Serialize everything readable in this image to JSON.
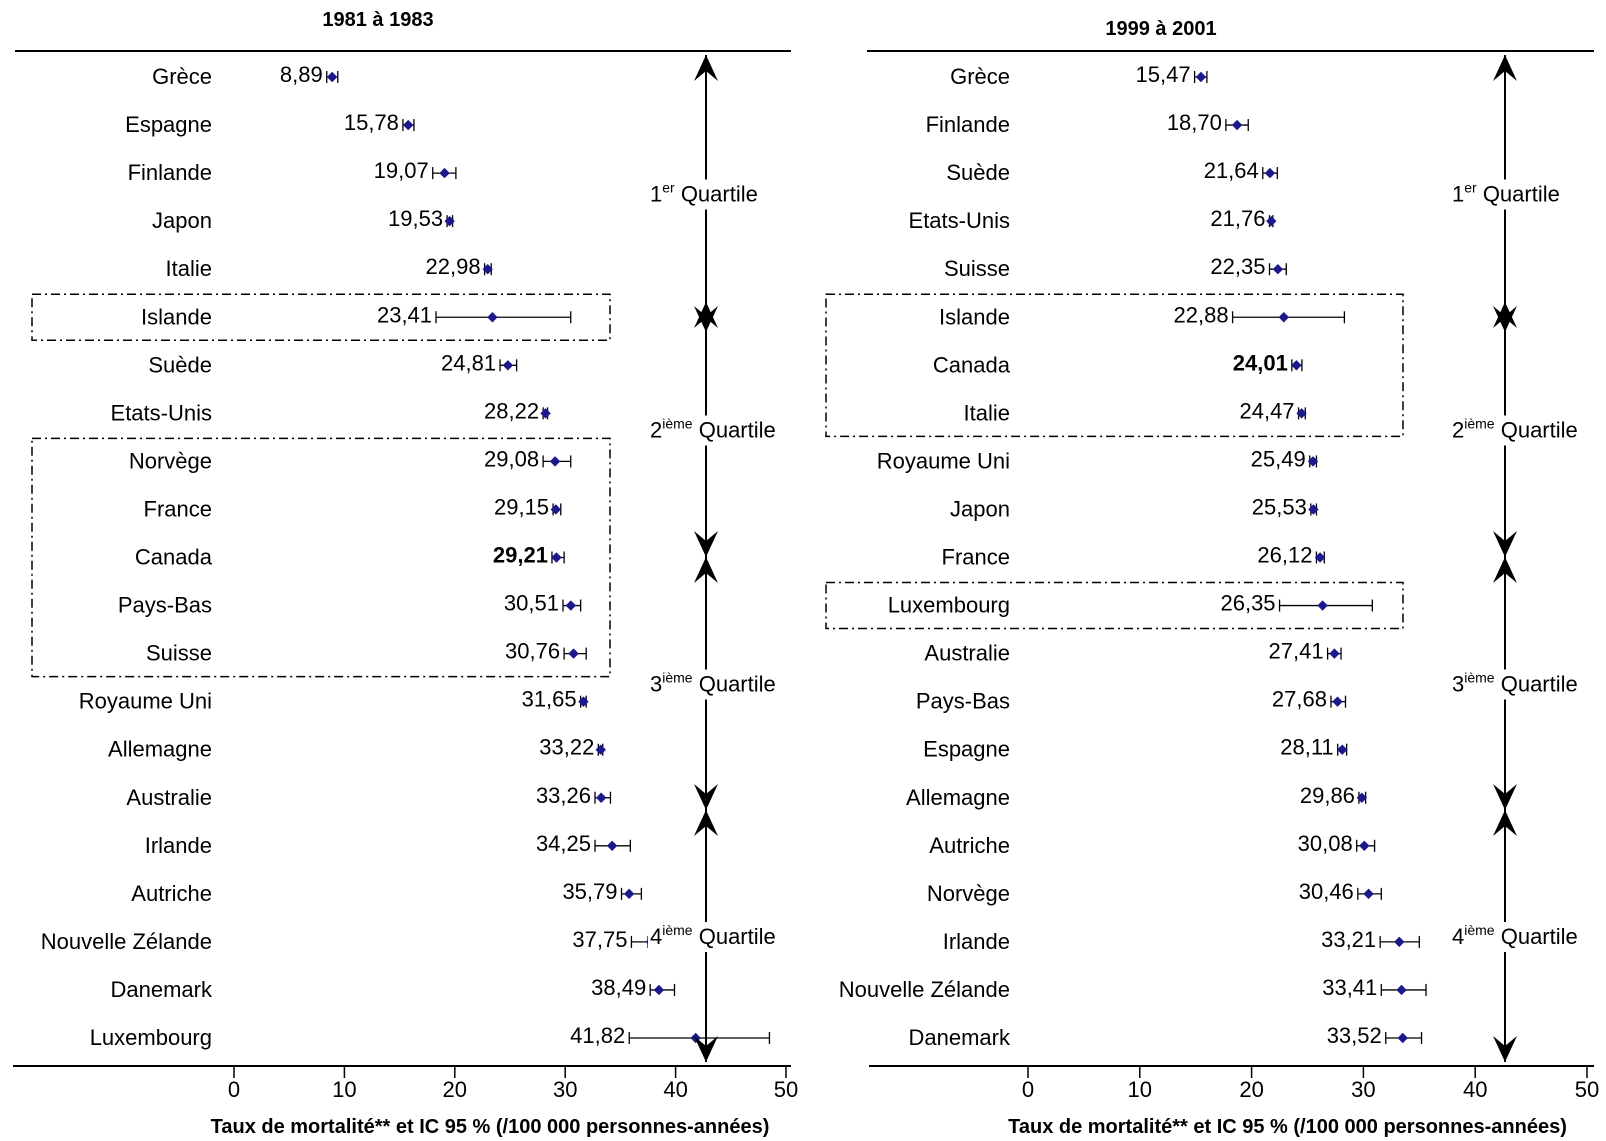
{
  "chart_data": [
    {
      "type": "forest",
      "title": "1981 à 1983",
      "xlabel": "Taux de mortalité** et IC 95 % (/100 000 personnes-années)",
      "xlim": [
        0,
        50
      ],
      "xticks": [
        "0",
        "10",
        "20",
        "30",
        "40",
        "50"
      ],
      "rows": [
        {
          "country": "Grèce",
          "label": "8,89",
          "value": 8.89,
          "lo": 8.4,
          "hi": 9.4
        },
        {
          "country": "Espagne",
          "label": "15,78",
          "value": 15.78,
          "lo": 15.3,
          "hi": 16.3
        },
        {
          "country": "Finlande",
          "label": "19,07",
          "value": 19.07,
          "lo": 18.0,
          "hi": 20.1
        },
        {
          "country": "Japon",
          "label": "19,53",
          "value": 19.53,
          "lo": 19.3,
          "hi": 19.8
        },
        {
          "country": "Italie",
          "label": "22,98",
          "value": 22.98,
          "lo": 22.7,
          "hi": 23.3
        },
        {
          "country": "Islande",
          "label": "23,41",
          "value": 23.41,
          "lo": 18.3,
          "hi": 30.5
        },
        {
          "country": "Suède",
          "label": "24,81",
          "value": 24.81,
          "lo": 24.1,
          "hi": 25.6
        },
        {
          "country": "Etats-Unis",
          "label": "28,22",
          "value": 28.22,
          "lo": 28.0,
          "hi": 28.4
        },
        {
          "country": "Norvège",
          "label": "29,08",
          "value": 29.08,
          "lo": 28.0,
          "hi": 30.5
        },
        {
          "country": "France",
          "label": "29,15",
          "value": 29.15,
          "lo": 28.9,
          "hi": 29.6
        },
        {
          "country": "Canada",
          "label": "29,21",
          "value": 29.21,
          "lo": 28.8,
          "hi": 29.9,
          "bold": true
        },
        {
          "country": "Pays-Bas",
          "label": "30,51",
          "value": 30.51,
          "lo": 29.8,
          "hi": 31.4
        },
        {
          "country": "Suisse",
          "label": "30,76",
          "value": 30.76,
          "lo": 29.9,
          "hi": 31.9
        },
        {
          "country": "Royaume Uni",
          "label": "31,65",
          "value": 31.65,
          "lo": 31.4,
          "hi": 31.9
        },
        {
          "country": "Allemagne",
          "label": "33,22",
          "value": 33.22,
          "lo": 33.0,
          "hi": 33.4
        },
        {
          "country": "Australie",
          "label": "33,26",
          "value": 33.26,
          "lo": 32.7,
          "hi": 34.1
        },
        {
          "country": "Irlande",
          "label": "34,25",
          "value": 34.25,
          "lo": 32.7,
          "hi": 35.9
        },
        {
          "country": "Autriche",
          "label": "35,79",
          "value": 35.79,
          "lo": 35.1,
          "hi": 36.9
        },
        {
          "country": "Nouvelle Zélande",
          "label": "37,75",
          "value": 37.75,
          "lo": 36.0,
          "hi": 37.5
        },
        {
          "country": "Danemark",
          "label": "38,49",
          "value": 38.49,
          "lo": 37.7,
          "hi": 39.9
        },
        {
          "country": "Luxembourg",
          "label": "41,82",
          "value": 41.82,
          "lo": 35.8,
          "hi": 48.5
        }
      ],
      "highlight_groups": [
        {
          "countries": [
            "Islande"
          ]
        },
        {
          "countries": [
            "Norvège",
            "France",
            "Canada",
            "Pays-Bas",
            "Suisse"
          ]
        }
      ],
      "quartiles": [
        {
          "label": "Quartile",
          "ordinal": "1",
          "suffix": "er"
        },
        {
          "label": "Quartile",
          "ordinal": "2",
          "suffix": "ième"
        },
        {
          "label": "Quartile",
          "ordinal": "3",
          "suffix": "ième"
        },
        {
          "label": "Quartile",
          "ordinal": "4",
          "suffix": "ième"
        }
      ]
    },
    {
      "type": "forest",
      "title": "1999 à 2001",
      "xlabel": "Taux de mortalité** et IC 95 % (/100 000 personnes-années)",
      "xlim": [
        0,
        50
      ],
      "xticks": [
        "0",
        "10",
        "20",
        "30",
        "40",
        "50"
      ],
      "rows": [
        {
          "country": "Grèce",
          "label": "15,47",
          "value": 15.47,
          "lo": 14.9,
          "hi": 16.0
        },
        {
          "country": "Finlande",
          "label": "18,70",
          "value": 18.7,
          "lo": 17.7,
          "hi": 19.7
        },
        {
          "country": "Suède",
          "label": "21,64",
          "value": 21.64,
          "lo": 21.0,
          "hi": 22.3
        },
        {
          "country": "Etats-Unis",
          "label": "21,76",
          "value": 21.76,
          "lo": 21.6,
          "hi": 21.9
        },
        {
          "country": "Suisse",
          "label": "22,35",
          "value": 22.35,
          "lo": 21.6,
          "hi": 23.1
        },
        {
          "country": "Islande",
          "label": "22,88",
          "value": 22.88,
          "lo": 18.3,
          "hi": 28.3
        },
        {
          "country": "Canada",
          "label": "24,01",
          "value": 24.01,
          "lo": 23.6,
          "hi": 24.5,
          "bold": true
        },
        {
          "country": "Italie",
          "label": "24,47",
          "value": 24.47,
          "lo": 24.2,
          "hi": 24.8
        },
        {
          "country": "Royaume Uni",
          "label": "25,49",
          "value": 25.49,
          "lo": 25.2,
          "hi": 25.8
        },
        {
          "country": "Japon",
          "label": "25,53",
          "value": 25.53,
          "lo": 25.3,
          "hi": 25.8
        },
        {
          "country": "France",
          "label": "26,12",
          "value": 26.12,
          "lo": 25.8,
          "hi": 26.5
        },
        {
          "country": "Luxembourg",
          "label": "26,35",
          "value": 26.35,
          "lo": 22.5,
          "hi": 30.8
        },
        {
          "country": "Australie",
          "label": "27,41",
          "value": 27.41,
          "lo": 26.8,
          "hi": 28.0
        },
        {
          "country": "Pays-Bas",
          "label": "27,68",
          "value": 27.68,
          "lo": 27.1,
          "hi": 28.4
        },
        {
          "country": "Espagne",
          "label": "28,11",
          "value": 28.11,
          "lo": 27.7,
          "hi": 28.5
        },
        {
          "country": "Allemagne",
          "label": "29,86",
          "value": 29.86,
          "lo": 29.6,
          "hi": 30.2
        },
        {
          "country": "Autriche",
          "label": "30,08",
          "value": 30.08,
          "lo": 29.4,
          "hi": 31.0
        },
        {
          "country": "Norvège",
          "label": "30,46",
          "value": 30.46,
          "lo": 29.5,
          "hi": 31.6
        },
        {
          "country": "Irlande",
          "label": "33,21",
          "value": 33.21,
          "lo": 31.5,
          "hi": 35.0
        },
        {
          "country": "Nouvelle Zélande",
          "label": "33,41",
          "value": 33.41,
          "lo": 31.6,
          "hi": 35.6
        },
        {
          "country": "Danemark",
          "label": "33,52",
          "value": 33.52,
          "lo": 32.0,
          "hi": 35.2
        }
      ],
      "highlight_groups": [
        {
          "countries": [
            "Islande",
            "Canada",
            "Italie"
          ]
        },
        {
          "countries": [
            "Luxembourg"
          ]
        }
      ],
      "quartiles": [
        {
          "label": "Quartile",
          "ordinal": "1",
          "suffix": "er"
        },
        {
          "label": "Quartile",
          "ordinal": "2",
          "suffix": "ième"
        },
        {
          "label": "Quartile",
          "ordinal": "3",
          "suffix": "ième"
        },
        {
          "label": "Quartile",
          "ordinal": "4",
          "suffix": "ième"
        }
      ]
    }
  ],
  "colors": {
    "point": "#1a1a8c",
    "ci": "#000000",
    "axis": "#000000"
  }
}
